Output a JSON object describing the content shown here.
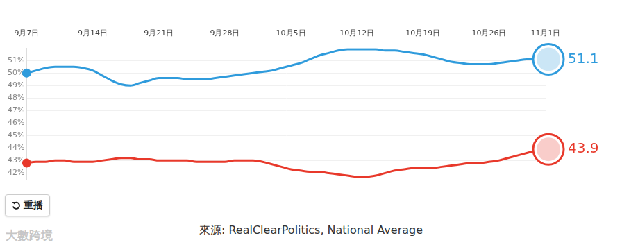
{
  "chart_data": {
    "type": "line",
    "categories": [
      "9月7日",
      null,
      null,
      null,
      null,
      null,
      null,
      "9月14日",
      null,
      null,
      null,
      null,
      null,
      null,
      "9月21日",
      null,
      null,
      null,
      null,
      null,
      null,
      "9月28日",
      null,
      null,
      null,
      null,
      null,
      null,
      "10月5日",
      null,
      null,
      null,
      null,
      null,
      null,
      "10月12日",
      null,
      null,
      null,
      null,
      null,
      null,
      "10月19日",
      null,
      null,
      null,
      null,
      null,
      null,
      "10月26日",
      null,
      null,
      null,
      null,
      null,
      "11月1日"
    ],
    "series": [
      {
        "color": "#2f9bdc",
        "marker": "circle",
        "values": [
          50.0,
          50.2,
          50.4,
          50.5,
          50.5,
          50.5,
          50.4,
          50.2,
          49.8,
          49.4,
          49.1,
          49.0,
          49.2,
          49.4,
          49.6,
          49.6,
          49.6,
          49.5,
          49.5,
          49.5,
          49.6,
          49.7,
          49.8,
          49.9,
          50.0,
          50.1,
          50.2,
          50.4,
          50.6,
          50.8,
          51.1,
          51.4,
          51.6,
          51.8,
          51.9,
          51.9,
          51.9,
          51.9,
          51.8,
          51.8,
          51.7,
          51.6,
          51.5,
          51.3,
          51.1,
          50.9,
          50.8,
          50.7,
          50.7,
          50.7,
          50.8,
          50.9,
          51.0,
          51.1,
          51.1,
          51.1
        ],
        "value_labels": [
          null,
          null,
          null,
          null,
          null,
          null,
          null,
          null,
          null,
          null,
          null,
          null,
          null,
          null,
          null,
          null,
          null,
          null,
          null,
          null,
          null,
          null,
          null,
          null,
          null,
          null,
          null,
          null,
          null,
          null,
          null,
          null,
          null,
          null,
          null,
          null,
          null,
          null,
          null,
          null,
          null,
          null,
          null,
          null,
          null,
          null,
          null,
          null,
          null,
          null,
          null,
          null,
          null,
          null,
          null,
          "51.1"
        ]
      },
      {
        "color": "#e8392b",
        "marker": "circle",
        "values": [
          42.8,
          42.9,
          42.9,
          43.0,
          43.0,
          42.9,
          42.9,
          42.9,
          43.0,
          43.1,
          43.2,
          43.2,
          43.1,
          43.1,
          43.0,
          43.0,
          43.0,
          43.0,
          42.9,
          42.9,
          42.9,
          42.9,
          43.0,
          43.0,
          43.0,
          42.9,
          42.7,
          42.5,
          42.3,
          42.2,
          42.1,
          42.1,
          42.0,
          41.9,
          41.8,
          41.7,
          41.7,
          41.8,
          42.0,
          42.2,
          42.3,
          42.4,
          42.4,
          42.4,
          42.5,
          42.6,
          42.7,
          42.8,
          42.8,
          42.9,
          43.0,
          43.2,
          43.4,
          43.6,
          43.8,
          43.9
        ],
        "value_labels": [
          null,
          null,
          null,
          null,
          null,
          null,
          null,
          null,
          null,
          null,
          null,
          null,
          null,
          null,
          null,
          null,
          null,
          null,
          null,
          null,
          null,
          null,
          null,
          null,
          null,
          null,
          null,
          null,
          null,
          null,
          null,
          null,
          null,
          null,
          null,
          null,
          null,
          null,
          null,
          null,
          null,
          null,
          null,
          null,
          null,
          null,
          null,
          null,
          null,
          null,
          null,
          null,
          null,
          null,
          null,
          "43.9"
        ]
      }
    ],
    "ylim": [
      41.5,
      52
    ],
    "yticks": [
      {
        "value": 42,
        "label": "42%"
      },
      {
        "value": 43,
        "label": "43%"
      },
      {
        "value": 44,
        "label": "44%"
      },
      {
        "value": 45,
        "label": "45%"
      },
      {
        "value": 46,
        "label": "46%"
      },
      {
        "value": 47,
        "label": "47%"
      },
      {
        "value": 48,
        "label": "48%"
      },
      {
        "value": 49,
        "label": "49%"
      },
      {
        "value": 50,
        "label": "50%"
      },
      {
        "value": 51,
        "label": "51%"
      }
    ],
    "grid": true,
    "button": "重播",
    "source": {
      "label": "來源:",
      "link": "RealClearPolitics, National Average"
    },
    "watermark": "大數跨境"
  }
}
